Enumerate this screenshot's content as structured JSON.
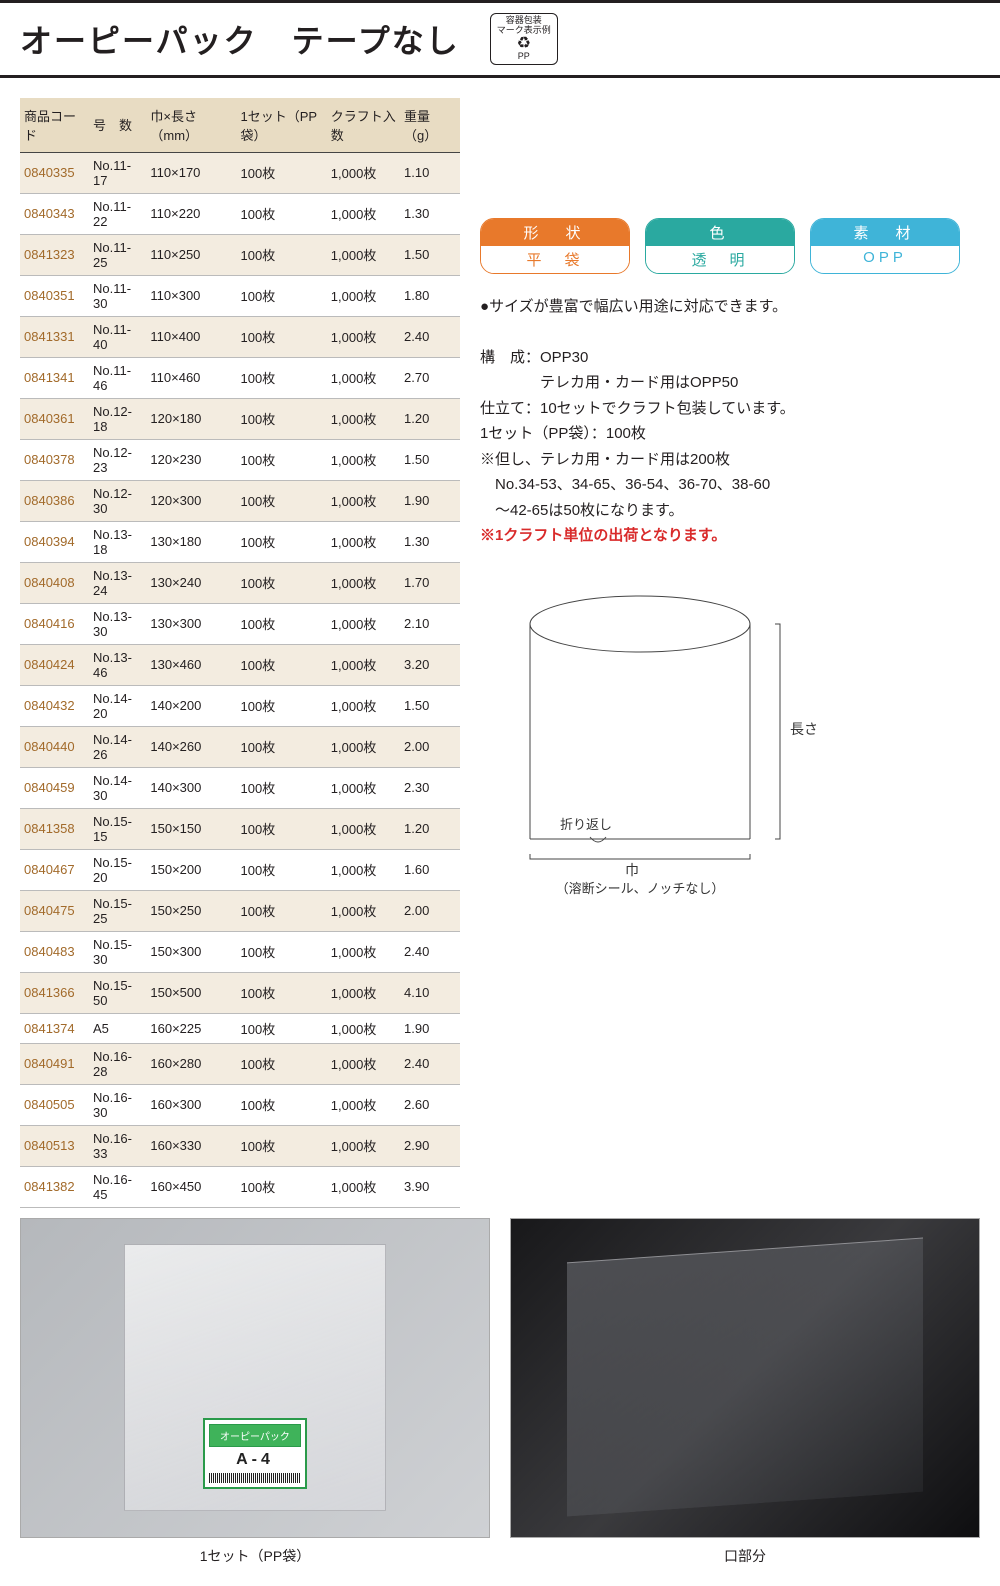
{
  "title": "オーピーパック　テープなし",
  "recycle": {
    "top": "容器包装",
    "mid": "マーク表示例",
    "pp": "PP"
  },
  "table": {
    "headers": [
      "商品コード",
      "号　数",
      "巾×長さ（mm）",
      "1セット（PP袋）",
      "クラフト入数",
      "重量（g）"
    ],
    "rows": [
      [
        "0840335",
        "No.11-17",
        "110×170",
        "100枚",
        "1,000枚",
        "1.10"
      ],
      [
        "0840343",
        "No.11-22",
        "110×220",
        "100枚",
        "1,000枚",
        "1.30"
      ],
      [
        "0841323",
        "No.11-25",
        "110×250",
        "100枚",
        "1,000枚",
        "1.50"
      ],
      [
        "0840351",
        "No.11-30",
        "110×300",
        "100枚",
        "1,000枚",
        "1.80"
      ],
      [
        "0841331",
        "No.11-40",
        "110×400",
        "100枚",
        "1,000枚",
        "2.40"
      ],
      [
        "0841341",
        "No.11-46",
        "110×460",
        "100枚",
        "1,000枚",
        "2.70"
      ],
      [
        "0840361",
        "No.12-18",
        "120×180",
        "100枚",
        "1,000枚",
        "1.20"
      ],
      [
        "0840378",
        "No.12-23",
        "120×230",
        "100枚",
        "1,000枚",
        "1.50"
      ],
      [
        "0840386",
        "No.12-30",
        "120×300",
        "100枚",
        "1,000枚",
        "1.90"
      ],
      [
        "0840394",
        "No.13-18",
        "130×180",
        "100枚",
        "1,000枚",
        "1.30"
      ],
      [
        "0840408",
        "No.13-24",
        "130×240",
        "100枚",
        "1,000枚",
        "1.70"
      ],
      [
        "0840416",
        "No.13-30",
        "130×300",
        "100枚",
        "1,000枚",
        "2.10"
      ],
      [
        "0840424",
        "No.13-46",
        "130×460",
        "100枚",
        "1,000枚",
        "3.20"
      ],
      [
        "0840432",
        "No.14-20",
        "140×200",
        "100枚",
        "1,000枚",
        "1.50"
      ],
      [
        "0840440",
        "No.14-26",
        "140×260",
        "100枚",
        "1,000枚",
        "2.00"
      ],
      [
        "0840459",
        "No.14-30",
        "140×300",
        "100枚",
        "1,000枚",
        "2.30"
      ],
      [
        "0841358",
        "No.15-15",
        "150×150",
        "100枚",
        "1,000枚",
        "1.20"
      ],
      [
        "0840467",
        "No.15-20",
        "150×200",
        "100枚",
        "1,000枚",
        "1.60"
      ],
      [
        "0840475",
        "No.15-25",
        "150×250",
        "100枚",
        "1,000枚",
        "2.00"
      ],
      [
        "0840483",
        "No.15-30",
        "150×300",
        "100枚",
        "1,000枚",
        "2.40"
      ],
      [
        "0841366",
        "No.15-50",
        "150×500",
        "100枚",
        "1,000枚",
        "4.10"
      ],
      [
        "0841374",
        "A5",
        "160×225",
        "100枚",
        "1,000枚",
        "1.90"
      ],
      [
        "0840491",
        "No.16-28",
        "160×280",
        "100枚",
        "1,000枚",
        "2.40"
      ],
      [
        "0840505",
        "No.16-30",
        "160×300",
        "100枚",
        "1,000枚",
        "2.60"
      ],
      [
        "0840513",
        "No.16-33",
        "160×330",
        "100枚",
        "1,000枚",
        "2.90"
      ],
      [
        "0841382",
        "No.16-45",
        "160×450",
        "100枚",
        "1,000枚",
        "3.90"
      ]
    ]
  },
  "badges": [
    {
      "cls": "orange",
      "top": "形　状",
      "bot": "平　袋"
    },
    {
      "cls": "teal",
      "top": "色",
      "bot": "透　明"
    },
    {
      "cls": "blue",
      "top": "素　材",
      "bot": "OPP"
    }
  ],
  "desc": {
    "bullet": "サイズが豊富で幅広い用途に対応できます。",
    "l1": "構　成：OPP30",
    "l2": "　　　　テレカ用・カード用はOPP50",
    "l3": "仕立て：10セットでクラフト包装しています。",
    "l4": "1セット（PP袋）：100枚",
    "l5": "※但し、テレカ用・カード用は200枚",
    "l6": "　No.34-53、34-65、36-54、36-70、38-60",
    "l7": "　～42-65は50枚になります。",
    "l8": "※1クラフト単位の出荷となります。"
  },
  "diagram": {
    "length": "長さ",
    "width": "巾",
    "fold": "折り返し",
    "seal": "（溶断シール、ノッチなし）"
  },
  "label": {
    "brand": "オーピーパック",
    "size": "A-4"
  },
  "captions": {
    "left": "1セット（PP袋）",
    "right": "口部分"
  }
}
